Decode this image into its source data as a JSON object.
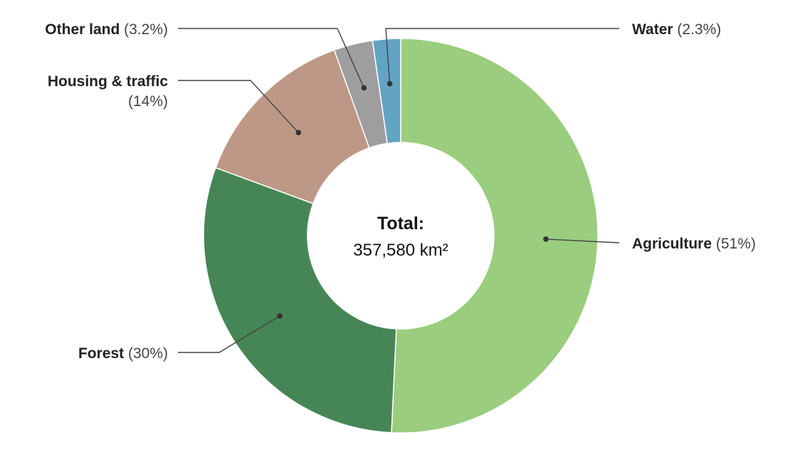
{
  "chart_data": {
    "type": "pie",
    "variant": "donut",
    "start": "12 o'clock, clockwise",
    "center_label": {
      "title": "Total:",
      "value": "357,580 km²"
    },
    "slices": [
      {
        "name": "Agriculture",
        "percent_label": "(51%)",
        "value": 51,
        "color": "#9acd7e"
      },
      {
        "name": "Forest",
        "percent_label": "(30%)",
        "value": 30,
        "color": "#468656"
      },
      {
        "name": "Housing & traffic",
        "percent_label": "(14%)",
        "value": 14,
        "color": "#be9886"
      },
      {
        "name": "Other land",
        "percent_label": "(3.2%)",
        "value": 3.2,
        "color": "#9e9e9e"
      },
      {
        "name": "Water",
        "percent_label": "(2.3%)",
        "value": 2.3,
        "color": "#63a3c3"
      }
    ]
  }
}
